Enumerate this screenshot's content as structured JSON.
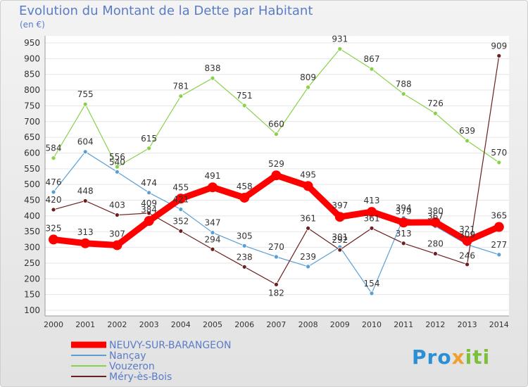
{
  "title": "Evolution du Montant de la Dette par Habitant",
  "unit": "(en €)",
  "logo": {
    "part1": "Pro",
    "part2": "x",
    "part3": "iti"
  },
  "chart_data": {
    "type": "line",
    "title": "Evolution du Montant de la Dette par Habitant",
    "ylabel": "(en €)",
    "ylim": [
      100,
      950
    ],
    "yticks": [
      100,
      150,
      200,
      250,
      300,
      350,
      400,
      450,
      500,
      550,
      600,
      650,
      700,
      750,
      800,
      850,
      900,
      950
    ],
    "categories": [
      "2000",
      "2001",
      "2002",
      "2003",
      "2004",
      "2005",
      "2006",
      "2007",
      "2008",
      "2009",
      "2010",
      "2011",
      "2012",
      "2013",
      "2014"
    ],
    "grid": "horizontal",
    "legend_position": "bottom-left",
    "series": [
      {
        "name": "NEUVY-SUR-BARANGEON",
        "color": "#ff0000",
        "values": [
          325,
          313,
          307,
          384,
          455,
          491,
          458,
          529,
          495,
          397,
          413,
          379,
          380,
          321,
          365
        ]
      },
      {
        "name": "Nançay",
        "color": "#5a9fd4",
        "values": [
          476,
          604,
          540,
          474,
          421,
          347,
          305,
          270,
          239,
          301,
          154,
          394,
          367,
          309,
          277
        ]
      },
      {
        "name": "Vouzeron",
        "color": "#88d24a",
        "values": [
          584,
          755,
          556,
          615,
          781,
          838,
          751,
          660,
          809,
          931,
          867,
          788,
          726,
          639,
          570
        ]
      },
      {
        "name": "Méry-ès-Bois",
        "color": "#6b1f1f",
        "values": [
          420,
          448,
          403,
          409,
          352,
          294,
          238,
          182,
          361,
          292,
          361,
          313,
          280,
          246,
          909
        ]
      }
    ]
  }
}
